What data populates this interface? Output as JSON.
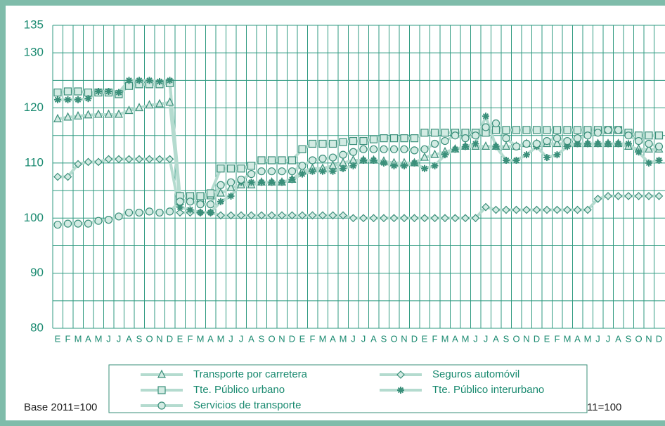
{
  "chart_data": {
    "type": "line",
    "note": "Base 2011=100",
    "categories": [
      "E",
      "F",
      "M",
      "A",
      "M",
      "J",
      "J",
      "A",
      "S",
      "O",
      "N",
      "D",
      "E",
      "F",
      "M",
      "A",
      "M",
      "J",
      "J",
      "A",
      "S",
      "O",
      "N",
      "D",
      "E",
      "F",
      "M",
      "A",
      "M",
      "J",
      "J",
      "A",
      "S",
      "O",
      "N",
      "D",
      "E",
      "F",
      "M",
      "A",
      "M",
      "J",
      "J",
      "A",
      "S",
      "O",
      "N",
      "D",
      "E",
      "F",
      "M",
      "A",
      "M",
      "J",
      "J",
      "A",
      "S",
      "O",
      "N",
      "D"
    ],
    "ylim": [
      80,
      135
    ],
    "yticks": [
      80,
      90,
      100,
      110,
      120,
      130,
      135
    ],
    "minor_yticks": [
      85,
      95,
      105,
      115,
      125
    ],
    "grid": true,
    "line_color": "#b4dbcf",
    "marker_stroke": "#3a8f7a",
    "marker_fill": "#d3ebe3",
    "series": [
      {
        "name": "Transporte por carretera",
        "marker": "triangle",
        "values": [
          118,
          118.3,
          118.5,
          118.7,
          118.8,
          118.8,
          118.8,
          119.5,
          120,
          120.5,
          120.7,
          121,
          103,
          103.5,
          103.5,
          104,
          104.5,
          105.5,
          106,
          106,
          106.5,
          106.5,
          106.5,
          107,
          108.5,
          109,
          109,
          109.5,
          110,
          110.5,
          110.5,
          110.5,
          110.3,
          110,
          110,
          110,
          111,
          111.5,
          112,
          112.5,
          113,
          113,
          113,
          113,
          113,
          113,
          113.5,
          113.5,
          113.5,
          113.5,
          113.5,
          113.5,
          113.5,
          113.5,
          113.5,
          113.5,
          113,
          112.5,
          112.5,
          112.5
        ]
      },
      {
        "name": "Seguros automóvil",
        "marker": "diamond",
        "values": [
          107.5,
          107.5,
          109.8,
          110.2,
          110.2,
          110.7,
          110.7,
          110.7,
          110.7,
          110.7,
          110.7,
          110.7,
          101,
          101,
          101,
          101,
          100.5,
          100.5,
          100.5,
          100.5,
          100.5,
          100.5,
          100.5,
          100.5,
          100.5,
          100.5,
          100.5,
          100.5,
          100.5,
          100,
          100,
          100,
          100,
          100,
          100,
          100,
          100,
          100,
          100,
          100,
          100,
          100,
          102,
          101.5,
          101.5,
          101.5,
          101.5,
          101.5,
          101.5,
          101.5,
          101.5,
          101.5,
          101.5,
          103.5,
          104,
          104,
          104,
          104,
          104,
          104
        ]
      },
      {
        "name": "Tte. Público urbano",
        "marker": "square",
        "values": [
          122.8,
          123,
          123,
          122.8,
          122.8,
          122.8,
          122.5,
          124,
          124.3,
          124.3,
          124.3,
          124.5,
          104,
          104,
          104,
          104.5,
          109,
          109,
          109,
          109.5,
          110.5,
          110.5,
          110.5,
          110.5,
          112.5,
          113.5,
          113.5,
          113.5,
          113.8,
          114,
          114,
          114.3,
          114.5,
          114.5,
          114.5,
          114.5,
          115.5,
          115.5,
          115.5,
          115.5,
          115.5,
          115.5,
          115.5,
          116,
          116,
          116,
          116,
          116,
          116,
          116,
          116,
          116,
          116,
          116,
          116,
          116,
          115.5,
          115,
          115,
          115
        ]
      },
      {
        "name": "Tte. Público interurbano",
        "marker": "asterisk",
        "values": [
          121.5,
          121.5,
          121.5,
          121.7,
          123,
          123,
          122.8,
          125,
          125,
          125,
          124.8,
          125,
          102,
          101.5,
          101,
          101,
          103,
          104,
          106.5,
          106.5,
          106.5,
          106.5,
          106.5,
          107,
          108,
          108.5,
          108.5,
          108.5,
          109,
          109.5,
          110.5,
          110.5,
          110,
          109.5,
          109.5,
          110,
          109,
          109.5,
          111.5,
          112.5,
          113,
          113.5,
          118.5,
          113,
          110.5,
          110.5,
          111.5,
          113,
          111,
          111.5,
          113,
          113.5,
          113.5,
          113.5,
          113.5,
          113.5,
          113.5,
          112,
          110,
          110.5
        ]
      },
      {
        "name": "Servicios de transporte",
        "marker": "circle",
        "values": [
          98.8,
          99,
          99,
          99,
          99.5,
          99.7,
          100.3,
          101,
          101,
          101.2,
          101,
          101.2,
          103,
          103,
          102.5,
          102.5,
          106,
          106.5,
          107,
          108,
          108.5,
          108.5,
          108.5,
          108.5,
          109.5,
          110.5,
          110.8,
          111,
          111.5,
          112,
          112.5,
          112.5,
          112.5,
          112.5,
          112.5,
          112.3,
          112.5,
          113.5,
          114,
          115,
          114.5,
          115,
          116.5,
          117.2,
          114.5,
          113,
          113.5,
          113.5,
          114,
          114.5,
          114,
          114.5,
          115,
          115.5,
          116,
          116,
          115,
          114,
          113.5,
          113
        ]
      }
    ]
  }
}
